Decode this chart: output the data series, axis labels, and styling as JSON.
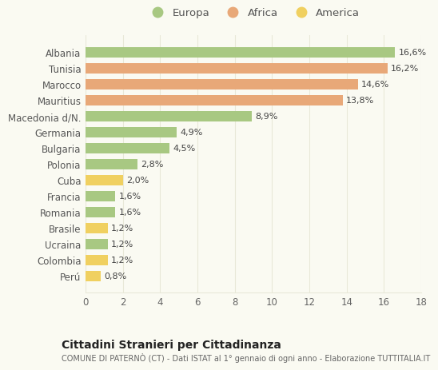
{
  "countries": [
    "Albania",
    "Tunisia",
    "Marocco",
    "Mauritius",
    "Macedonia d/N.",
    "Germania",
    "Bulgaria",
    "Polonia",
    "Cuba",
    "Francia",
    "Romania",
    "Brasile",
    "Ucraina",
    "Colombia",
    "Perú"
  ],
  "values": [
    16.6,
    16.2,
    14.6,
    13.8,
    8.9,
    4.9,
    4.5,
    2.8,
    2.0,
    1.6,
    1.6,
    1.2,
    1.2,
    1.2,
    0.8
  ],
  "labels": [
    "16,6%",
    "16,2%",
    "14,6%",
    "13,8%",
    "8,9%",
    "4,9%",
    "4,5%",
    "2,8%",
    "2,0%",
    "1,6%",
    "1,6%",
    "1,2%",
    "1,2%",
    "1,2%",
    "0,8%"
  ],
  "continents": [
    "Europa",
    "Africa",
    "Africa",
    "Africa",
    "Europa",
    "Europa",
    "Europa",
    "Europa",
    "America",
    "Europa",
    "Europa",
    "America",
    "Europa",
    "America",
    "America"
  ],
  "colors": {
    "Europa": "#a8c882",
    "Africa": "#e8a878",
    "America": "#f0d060"
  },
  "title": "Cittadini Stranieri per Cittadinanza",
  "subtitle": "COMUNE DI PATERNÒ (CT) - Dati ISTAT al 1° gennaio di ogni anno - Elaborazione TUTTITALIA.IT",
  "xlim": [
    0,
    18
  ],
  "xticks": [
    0,
    2,
    4,
    6,
    8,
    10,
    12,
    14,
    16,
    18
  ],
  "background_color": "#fafaf2",
  "grid_color": "#e8e8d8",
  "bar_height": 0.62,
  "label_fontsize": 8,
  "ytick_fontsize": 8.5,
  "xtick_fontsize": 8.5
}
